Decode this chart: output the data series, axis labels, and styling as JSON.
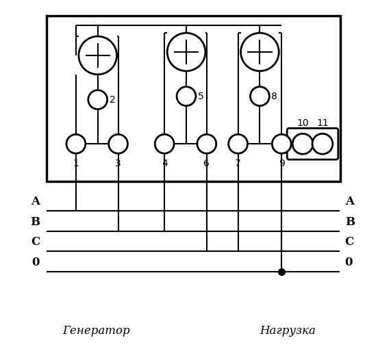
{
  "fig_width": 5.52,
  "fig_height": 5.07,
  "dpi": 100,
  "bg_color": "#ffffff",
  "line_color": "#000000",
  "labels_generator": "Генератор",
  "labels_load": "Нагрузка",
  "phase_names": [
    "A",
    "B",
    "C",
    "0"
  ]
}
